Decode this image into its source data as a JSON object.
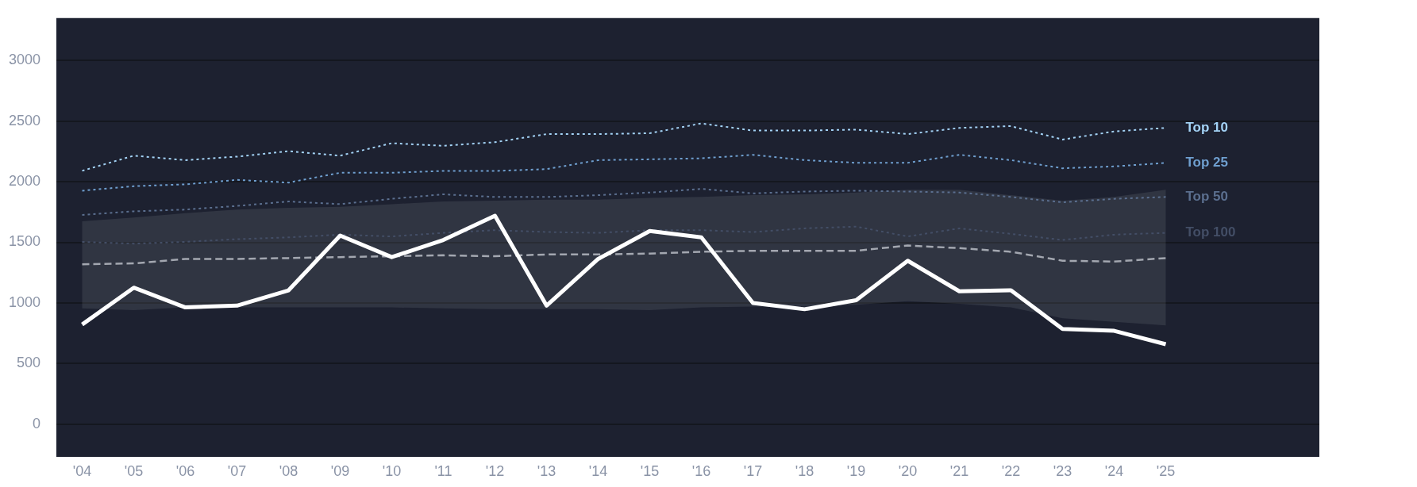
{
  "chart_data": {
    "type": "line",
    "categories": [
      "'04",
      "'05",
      "'06",
      "'07",
      "'08",
      "'09",
      "'10",
      "'11",
      "'12",
      "'13",
      "'14",
      "'15",
      "'16",
      "'17",
      "'18",
      "'19",
      "'20",
      "'21",
      "'22",
      "'23",
      "'24",
      "'25"
    ],
    "ylim": [
      -270,
      3350
    ],
    "yticks": [
      0,
      500,
      1000,
      1500,
      2000,
      2500,
      3000
    ],
    "grid": "y",
    "legend": false,
    "marker": "none",
    "series": [
      {
        "name": "Top 10",
        "color": "#a3d2f5",
        "line_style": "dotted",
        "values": [
          2090,
          2215,
          2178,
          2207,
          2252,
          2215,
          2318,
          2296,
          2326,
          2393,
          2393,
          2400,
          2481,
          2422,
          2422,
          2430,
          2393,
          2444,
          2459,
          2348,
          2415,
          2444
        ]
      },
      {
        "name": "Top 25",
        "color": "#6f9fcf",
        "line_style": "dotted",
        "values": [
          1926,
          1963,
          1978,
          2015,
          1993,
          2074,
          2074,
          2089,
          2089,
          2104,
          2178,
          2185,
          2193,
          2222,
          2178,
          2156,
          2156,
          2222,
          2178,
          2111,
          2126,
          2156
        ]
      },
      {
        "name": "Top 50",
        "color": "#5b6f8f",
        "line_style": "dotted",
        "values": [
          1726,
          1756,
          1770,
          1800,
          1837,
          1815,
          1859,
          1896,
          1874,
          1874,
          1889,
          1911,
          1941,
          1904,
          1919,
          1926,
          1919,
          1911,
          1874,
          1830,
          1859,
          1874
        ]
      },
      {
        "name": "Top 100",
        "color": "#434e66",
        "line_style": "dotted",
        "values": [
          1504,
          1489,
          1504,
          1526,
          1541,
          1563,
          1548,
          1578,
          1600,
          1585,
          1578,
          1600,
          1600,
          1585,
          1615,
          1630,
          1548,
          1615,
          1570,
          1519,
          1563,
          1578
        ]
      },
      {
        "color": "#a3a7b0",
        "line_style": "dashed",
        "values": [
          1319,
          1326,
          1363,
          1363,
          1370,
          1378,
          1385,
          1393,
          1385,
          1400,
          1400,
          1407,
          1422,
          1430,
          1430,
          1430,
          1474,
          1452,
          1422,
          1348,
          1341,
          1370
        ],
        "upper": [
          1674,
          1704,
          1741,
          1770,
          1785,
          1793,
          1815,
          1837,
          1844,
          1852,
          1852,
          1867,
          1874,
          1889,
          1896,
          1911,
          1933,
          1933,
          1889,
          1844,
          1874,
          1933
        ],
        "lower": [
          955,
          941,
          963,
          963,
          963,
          963,
          963,
          955,
          948,
          948,
          948,
          941,
          963,
          970,
          970,
          985,
          1015,
          993,
          963,
          874,
          844,
          815
        ]
      },
      {
        "color": "#ffffff",
        "line_style": "solid",
        "values": [
          822,
          1126,
          963,
          978,
          1104,
          1556,
          1378,
          1519,
          1719,
          978,
          1363,
          1593,
          1541,
          1000,
          948,
          1022,
          1348,
          1096,
          1104,
          785,
          770,
          659
        ]
      }
    ]
  }
}
